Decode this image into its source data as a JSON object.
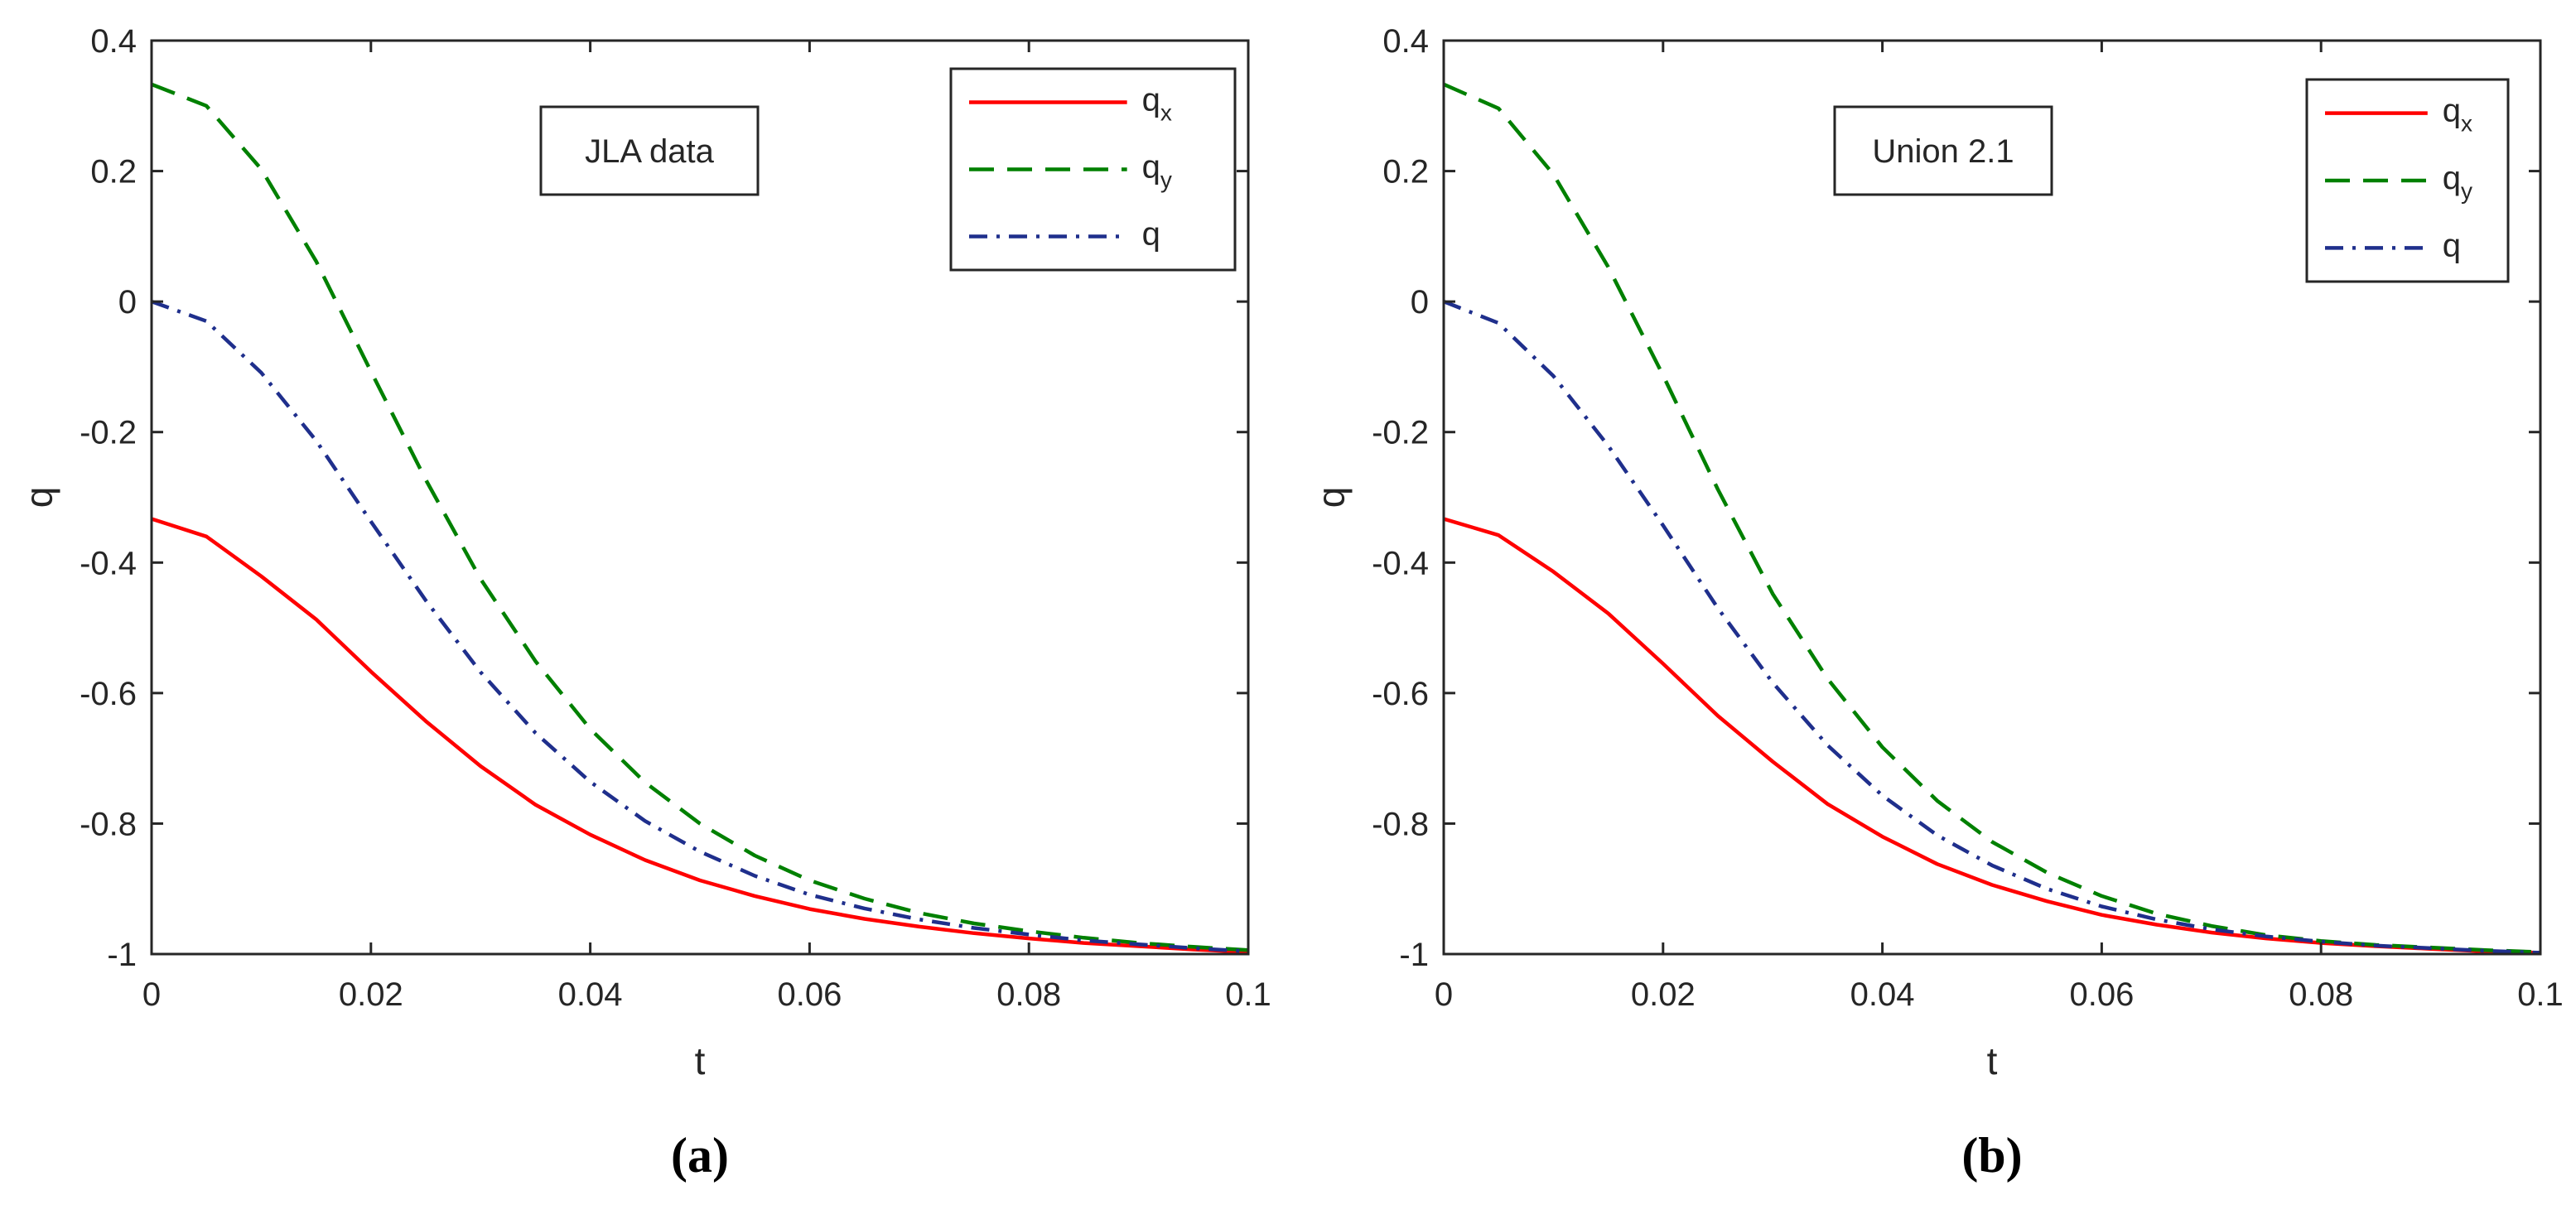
{
  "chart_data": [
    {
      "type": "line",
      "caption": "(a)",
      "annotation": "JLA data",
      "xlabel": "t",
      "ylabel": "q",
      "xlim": [
        0,
        0.1
      ],
      "ylim": [
        -1,
        0.4
      ],
      "xticks": [
        0,
        0.02,
        0.04,
        0.06,
        0.08,
        0.1
      ],
      "xtick_labels": [
        "0",
        "0.02",
        "0.04",
        "0.06",
        "0.08",
        "0.1"
      ],
      "yticks": [
        -1,
        -0.8,
        -0.6,
        -0.4,
        -0.2,
        0,
        0.2,
        0.4
      ],
      "ytick_labels": [
        "-1",
        "-0.8",
        "-0.6",
        "-0.4",
        "-0.2",
        "0",
        "0.2",
        "0.4"
      ],
      "grid": false,
      "legend_position": "top-right",
      "x": [
        0,
        0.005,
        0.01,
        0.015,
        0.02,
        0.025,
        0.03,
        0.035,
        0.04,
        0.045,
        0.05,
        0.055,
        0.06,
        0.065,
        0.07,
        0.075,
        0.08,
        0.085,
        0.09,
        0.095,
        0.1
      ],
      "series": [
        {
          "name": "q",
          "sub": "x",
          "color": "#ff0000",
          "dash": "solid",
          "values": [
            -0.333,
            -0.36,
            -0.421,
            -0.487,
            -0.567,
            -0.643,
            -0.712,
            -0.771,
            -0.817,
            -0.856,
            -0.887,
            -0.911,
            -0.931,
            -0.946,
            -0.958,
            -0.968,
            -0.976,
            -0.983,
            -0.988,
            -0.993,
            -0.997
          ]
        },
        {
          "name": "q",
          "sub": "y",
          "color": "#008000",
          "dash": "dashed",
          "values": [
            0.333,
            0.3,
            0.203,
            0.062,
            -0.107,
            -0.273,
            -0.425,
            -0.551,
            -0.655,
            -0.737,
            -0.8,
            -0.849,
            -0.887,
            -0.915,
            -0.937,
            -0.953,
            -0.965,
            -0.975,
            -0.983,
            -0.989,
            -0.994
          ]
        },
        {
          "name": "q",
          "sub": "",
          "color": "#1f2f8c",
          "dash": "dashdot",
          "values": [
            0.0,
            -0.03,
            -0.109,
            -0.213,
            -0.337,
            -0.458,
            -0.568,
            -0.661,
            -0.736,
            -0.796,
            -0.843,
            -0.88,
            -0.909,
            -0.93,
            -0.947,
            -0.96,
            -0.97,
            -0.979,
            -0.985,
            -0.991,
            -0.996
          ]
        }
      ]
    },
    {
      "type": "line",
      "caption": "(b)",
      "annotation": "Union 2.1",
      "xlabel": "t",
      "ylabel": "q",
      "xlim": [
        0,
        0.1
      ],
      "ylim": [
        -1,
        0.4
      ],
      "xticks": [
        0,
        0.02,
        0.04,
        0.06,
        0.08,
        0.1
      ],
      "xtick_labels": [
        "0",
        "0.02",
        "0.04",
        "0.06",
        "0.08",
        "0.1"
      ],
      "yticks": [
        -1,
        -0.8,
        -0.6,
        -0.4,
        -0.2,
        0,
        0.2,
        0.4
      ],
      "ytick_labels": [
        "-1",
        "-0.8",
        "-0.6",
        "-0.4",
        "-0.2",
        "0",
        "0.2",
        "0.4"
      ],
      "grid": false,
      "legend_position": "top-right",
      "x": [
        0,
        0.005,
        0.01,
        0.015,
        0.02,
        0.025,
        0.03,
        0.035,
        0.04,
        0.045,
        0.05,
        0.055,
        0.06,
        0.065,
        0.07,
        0.075,
        0.08,
        0.085,
        0.09,
        0.095,
        0.1
      ],
      "series": [
        {
          "name": "q",
          "sub": "x",
          "color": "#ff0000",
          "dash": "solid",
          "values": [
            -0.333,
            -0.358,
            -0.414,
            -0.478,
            -0.555,
            -0.635,
            -0.705,
            -0.77,
            -0.82,
            -0.862,
            -0.894,
            -0.919,
            -0.94,
            -0.955,
            -0.967,
            -0.976,
            -0.983,
            -0.988,
            -0.992,
            -0.996,
            -0.998
          ]
        },
        {
          "name": "q",
          "sub": "y",
          "color": "#008000",
          "dash": "dashed",
          "values": [
            0.333,
            0.296,
            0.195,
            0.053,
            -0.113,
            -0.288,
            -0.448,
            -0.578,
            -0.683,
            -0.765,
            -0.828,
            -0.875,
            -0.911,
            -0.938,
            -0.957,
            -0.971,
            -0.98,
            -0.986,
            -0.99,
            -0.994,
            -0.997
          ]
        },
        {
          "name": "q",
          "sub": "",
          "color": "#1f2f8c",
          "dash": "dashdot",
          "values": [
            0.0,
            -0.033,
            -0.114,
            -0.221,
            -0.343,
            -0.47,
            -0.584,
            -0.68,
            -0.757,
            -0.818,
            -0.864,
            -0.9,
            -0.927,
            -0.947,
            -0.962,
            -0.973,
            -0.981,
            -0.987,
            -0.991,
            -0.995,
            -0.998
          ]
        }
      ]
    }
  ]
}
